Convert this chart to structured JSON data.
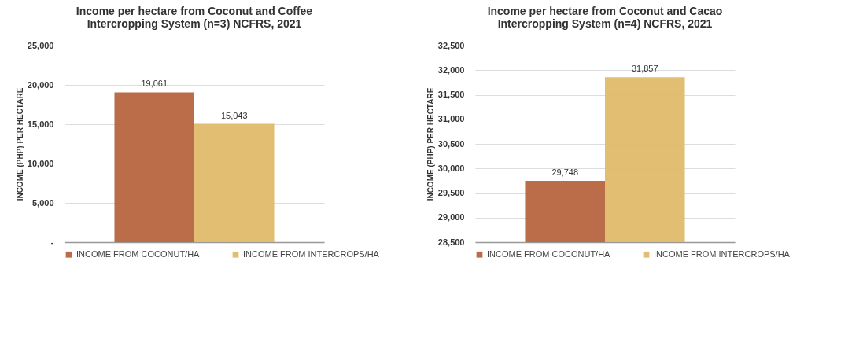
{
  "chart_data": [
    {
      "type": "bar",
      "title": "Income per hectare from Coconut and Coffee Intercropping System (n=3) NCFRS, 2021",
      "ylabel": "INCOME (PHP) PER HECTARE",
      "categories": [
        null
      ],
      "series": [
        {
          "name": "INCOME FROM COCONUT/HA",
          "color": "#b5603a",
          "values": [
            19061
          ],
          "value_labels": [
            "19,061"
          ]
        },
        {
          "name": "INCOME FROM INTERCROPS/HA",
          "color": "#e0b866",
          "values": [
            15043
          ],
          "value_labels": [
            "15,043"
          ]
        }
      ],
      "ylim": [
        0,
        25000
      ],
      "yticks": [
        {
          "value": 0,
          "label": "-"
        },
        {
          "value": 5000,
          "label": "5,000"
        },
        {
          "value": 10000,
          "label": "10,000"
        },
        {
          "value": 15000,
          "label": "15,000"
        },
        {
          "value": 20000,
          "label": "20,000"
        },
        {
          "value": 25000,
          "label": "25,000"
        }
      ],
      "grid": "y",
      "legend": "bottom"
    },
    {
      "type": "bar",
      "title": "Income per hectare from Coconut and Cacao Intercropping System (n=4)  NCFRS, 2021",
      "ylabel": "INCOME (PHP) PER HECTARE",
      "categories": [
        null
      ],
      "series": [
        {
          "name": "INCOME FROM COCONUT/HA",
          "color": "#b5603a",
          "values": [
            29748
          ],
          "value_labels": [
            "29,748"
          ]
        },
        {
          "name": "INCOME FROM INTERCROPS/HA",
          "color": "#e0b866",
          "values": [
            31857
          ],
          "value_labels": [
            "31,857"
          ]
        }
      ],
      "ylim": [
        28500,
        32500
      ],
      "yticks": [
        {
          "value": 28500,
          "label": "28,500"
        },
        {
          "value": 29000,
          "label": "29,000"
        },
        {
          "value": 29500,
          "label": "29,500"
        },
        {
          "value": 30000,
          "label": "30,000"
        },
        {
          "value": 30500,
          "label": "30,500"
        },
        {
          "value": 31000,
          "label": "31,000"
        },
        {
          "value": 31500,
          "label": "31,500"
        },
        {
          "value": 32000,
          "label": "32,000"
        },
        {
          "value": 32500,
          "label": "32,500"
        }
      ],
      "grid": "y",
      "legend": "bottom"
    }
  ]
}
